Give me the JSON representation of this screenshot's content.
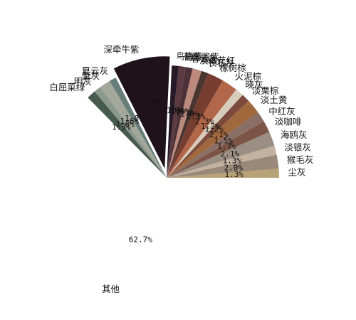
{
  "chart_data": {
    "type": "pie",
    "title": "",
    "legend": "none",
    "slices": [
      {
        "label": "尘灰",
        "value": 1.3,
        "color": "#b8a277"
      },
      {
        "label": "猴毛灰",
        "value": 2.0,
        "color": "#9a8878"
      },
      {
        "label": "淡银灰",
        "value": 1.3,
        "color": "#c4b2a0"
      },
      {
        "label": "海鸥灰",
        "value": 2.1,
        "color": "#9b8f83"
      },
      {
        "label": "淡咖啡",
        "value": 1.7,
        "color": "#7d5547"
      },
      {
        "label": "中红灰",
        "value": 1.5,
        "color": "#8a6f66"
      },
      {
        "label": "淡土黄",
        "value": 2.1,
        "color": "#a0683d"
      },
      {
        "label": "淡栗棕",
        "value": 1.2,
        "color": "#7b4a3c"
      },
      {
        "label": "晓灰",
        "value": 1.2,
        "color": "#d8ccbc"
      },
      {
        "label": "火泥棕",
        "value": 2.3,
        "color": "#b3674a"
      },
      {
        "label": "橡树棕",
        "value": 2.3,
        "color": "#773d30"
      },
      {
        "label": "长石灰",
        "value": 1.0,
        "color": "#4a3530"
      },
      {
        "label": "淡藏花红",
        "value": 1.3,
        "color": "#bb8a7c"
      },
      {
        "label": "暮云灰",
        "value": 1.0,
        "color": "#4c3138"
      },
      {
        "label": "葡萄酱紫",
        "value": 1.0,
        "color": "#5b3a42"
      },
      {
        "label": "鸟梅紫",
        "value": 1.0,
        "color": "#251a26"
      },
      {
        "label": "深牵牛紫",
        "value": 8.2,
        "color": "#1f121b",
        "explode": true
      },
      {
        "label": "夏云灰",
        "value": 1.0,
        "color": "#667d7a"
      },
      {
        "label": "蟹灰",
        "value": 1.6,
        "color": "#a3a89a"
      },
      {
        "label": "明灰",
        "value": 1.0,
        "color": "#8a988e"
      },
      {
        "label": "白屈菜绿",
        "value": 1.3,
        "color": "#475a4e"
      },
      {
        "label": "其他",
        "value": 62.7,
        "color": "#ffffff"
      }
    ],
    "pct_labels": [
      "1.3%",
      "2.0%",
      "1.3%",
      "2.1%",
      "1.7%",
      "1.5%",
      "2.1%",
      "1.2%",
      "1.2%",
      "2.3%",
      "2.3%",
      "1.0%",
      "1.3%",
      "1.0%",
      "1.0%",
      "1.0%",
      "8.2%",
      "1.0%",
      "1.6%",
      "1.0%",
      "1.3%",
      "62.7%"
    ]
  }
}
